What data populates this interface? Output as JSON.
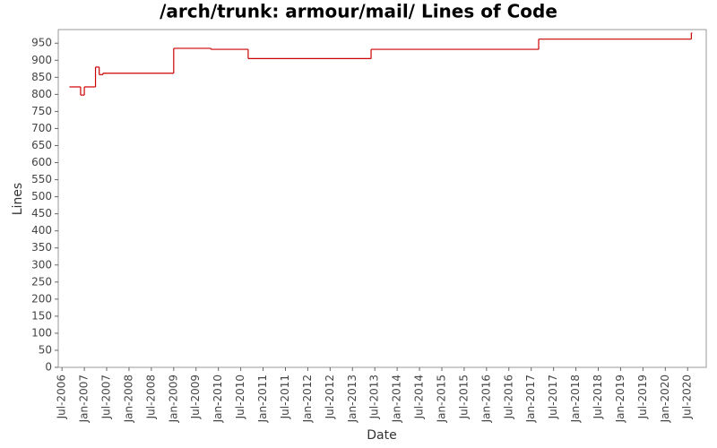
{
  "chart_data": {
    "type": "step-line",
    "title": "/arch/trunk: armour/mail/ Lines of Code",
    "xlabel": "Date",
    "ylabel": "Lines",
    "x": [
      "2006-09",
      "2006-12",
      "2007-01",
      "2007-04",
      "2007-05",
      "2007-06",
      "2009-01",
      "2009-11",
      "2010-09",
      "2013-06",
      "2017-03",
      "2020-08"
    ],
    "series": [
      {
        "color": "#cc0000",
        "values": [
          822,
          798,
          822,
          880,
          858,
          862,
          935,
          932,
          905,
          932,
          962,
          980
        ]
      }
    ],
    "xlim": [
      "2006-06",
      "2020-12"
    ],
    "xticks": [
      {
        "value": "2006-07",
        "label": "Jul-2006"
      },
      {
        "value": "2007-01",
        "label": "Jan-2007"
      },
      {
        "value": "2007-07",
        "label": "Jul-2007"
      },
      {
        "value": "2008-01",
        "label": "Jan-2008"
      },
      {
        "value": "2008-07",
        "label": "Jul-2008"
      },
      {
        "value": "2009-01",
        "label": "Jan-2009"
      },
      {
        "value": "2009-07",
        "label": "Jul-2009"
      },
      {
        "value": "2010-01",
        "label": "Jan-2010"
      },
      {
        "value": "2010-07",
        "label": "Jul-2010"
      },
      {
        "value": "2011-01",
        "label": "Jan-2011"
      },
      {
        "value": "2011-07",
        "label": "Jul-2011"
      },
      {
        "value": "2012-01",
        "label": "Jan-2012"
      },
      {
        "value": "2012-07",
        "label": "Jul-2012"
      },
      {
        "value": "2013-01",
        "label": "Jan-2013"
      },
      {
        "value": "2013-07",
        "label": "Jul-2013"
      },
      {
        "value": "2014-01",
        "label": "Jan-2014"
      },
      {
        "value": "2014-07",
        "label": "Jul-2014"
      },
      {
        "value": "2015-01",
        "label": "Jan-2015"
      },
      {
        "value": "2015-07",
        "label": "Jul-2015"
      },
      {
        "value": "2016-01",
        "label": "Jan-2016"
      },
      {
        "value": "2016-07",
        "label": "Jul-2016"
      },
      {
        "value": "2017-01",
        "label": "Jan-2017"
      },
      {
        "value": "2017-07",
        "label": "Jul-2017"
      },
      {
        "value": "2018-01",
        "label": "Jan-2018"
      },
      {
        "value": "2018-07",
        "label": "Jul-2018"
      },
      {
        "value": "2019-01",
        "label": "Jan-2019"
      },
      {
        "value": "2019-07",
        "label": "Jul-2019"
      },
      {
        "value": "2020-01",
        "label": "Jan-2020"
      },
      {
        "value": "2020-07",
        "label": "Jul-2020"
      }
    ],
    "ylim": [
      0,
      990
    ],
    "yticks": [
      0,
      50,
      100,
      150,
      200,
      250,
      300,
      350,
      400,
      450,
      500,
      550,
      600,
      650,
      700,
      750,
      800,
      850,
      900,
      950
    ],
    "grid": false
  }
}
